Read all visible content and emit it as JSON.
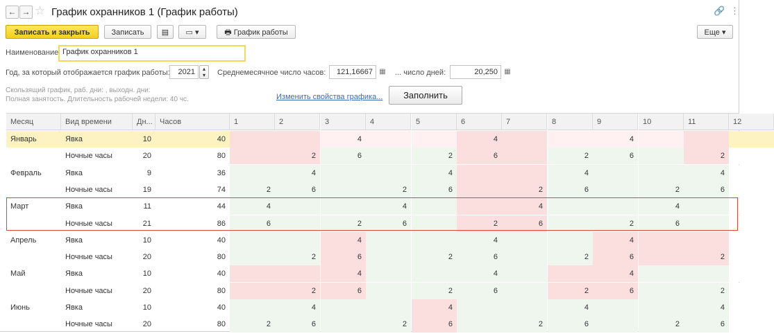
{
  "window": {
    "title": "График охранников 1 (График работы)",
    "back_glyph": "←",
    "forward_glyph": "→",
    "star_glyph": "☆",
    "link_glyph": "🔗",
    "more_glyph": "⋮"
  },
  "toolbar": {
    "save_close": "Записать и закрыть",
    "save": "Записать",
    "doc_glyph": "▤",
    "create_based_glyph": "▾",
    "print_glyph": "🖶",
    "schedule_btn": "График работы",
    "more": "Еще ▾"
  },
  "form": {
    "name_label": "Наименование:",
    "name_value": "График охранников 1",
    "year_label": "Год, за который отображается график работы:",
    "year_value": "2021",
    "avg_hours_label": "Среднемесячное число часов:",
    "avg_hours_value": "121,16667",
    "avg_days_label": "... число дней:",
    "avg_days_value": "20,250",
    "calendar_glyph": "▦",
    "info_line1": "Скользящий график, раб. дни: , выходн. дни:",
    "info_line2": "Полная занятость. Длительность рабочей недели: 40 чс.",
    "change_link": "Изменить свойства графика...",
    "fill_button": "Заполнить"
  },
  "table": {
    "headers": [
      "Месяц",
      "Вид времени",
      "Дн...",
      "Часов",
      "1",
      "2",
      "3",
      "4",
      "5",
      "6",
      "7",
      "8",
      "9",
      "10",
      "11",
      "12"
    ],
    "rows": [
      {
        "month": "Январь",
        "kind": "Явка",
        "days": "10",
        "hours": "40",
        "d": [
          "",
          "",
          "4",
          "",
          "",
          "4",
          "",
          "",
          "4",
          "",
          "",
          ""
        ]
      },
      {
        "month": "",
        "kind": "Ночные часы",
        "days": "20",
        "hours": "80",
        "d": [
          "",
          "2",
          "6",
          "",
          "2",
          "6",
          "",
          "2",
          "6",
          "",
          "2",
          ""
        ]
      },
      {
        "month": "Февраль",
        "kind": "Явка",
        "days": "9",
        "hours": "36",
        "d": [
          "",
          "4",
          "",
          "",
          "4",
          "",
          "",
          "4",
          "",
          "",
          "4",
          ""
        ]
      },
      {
        "month": "",
        "kind": "Ночные часы",
        "days": "19",
        "hours": "74",
        "d": [
          "2",
          "6",
          "",
          "2",
          "6",
          "",
          "2",
          "6",
          "",
          "2",
          "6",
          ""
        ]
      },
      {
        "month": "Март",
        "kind": "Явка",
        "days": "11",
        "hours": "44",
        "d": [
          "4",
          "",
          "",
          "4",
          "",
          "",
          "4",
          "",
          "",
          "4",
          "",
          ""
        ]
      },
      {
        "month": "",
        "kind": "Ночные часы",
        "days": "21",
        "hours": "86",
        "d": [
          "6",
          "",
          "2",
          "6",
          "",
          "2",
          "6",
          "",
          "2",
          "6",
          "",
          ""
        ]
      },
      {
        "month": "Апрель",
        "kind": "Явка",
        "days": "10",
        "hours": "40",
        "d": [
          "",
          "",
          "4",
          "",
          "",
          "4",
          "",
          "",
          "4",
          "",
          "",
          ""
        ]
      },
      {
        "month": "",
        "kind": "Ночные часы",
        "days": "20",
        "hours": "80",
        "d": [
          "",
          "2",
          "6",
          "",
          "2",
          "6",
          "",
          "2",
          "6",
          "",
          "2",
          ""
        ]
      },
      {
        "month": "Май",
        "kind": "Явка",
        "days": "10",
        "hours": "40",
        "d": [
          "",
          "",
          "4",
          "",
          "",
          "4",
          "",
          "",
          "4",
          "",
          "",
          ""
        ]
      },
      {
        "month": "",
        "kind": "Ночные часы",
        "days": "20",
        "hours": "80",
        "d": [
          "",
          "2",
          "6",
          "",
          "2",
          "6",
          "",
          "2",
          "6",
          "",
          "2",
          ""
        ]
      },
      {
        "month": "Июнь",
        "kind": "Явка",
        "days": "10",
        "hours": "40",
        "d": [
          "",
          "4",
          "",
          "",
          "4",
          "",
          "",
          "4",
          "",
          "",
          "4",
          ""
        ]
      },
      {
        "month": "",
        "kind": "Ночные часы",
        "days": "20",
        "hours": "80",
        "d": [
          "2",
          "6",
          "",
          "2",
          "6",
          "",
          "2",
          "6",
          "",
          "2",
          "6",
          ""
        ]
      }
    ]
  },
  "colors": {
    "weekend": "#fbdede",
    "workday": "#eef6ee",
    "selected_month": "#fdf3c2",
    "selected_workday": "#fff1f1",
    "highlight_border": "#e0453a",
    "primary_button": "#f4cf20"
  }
}
